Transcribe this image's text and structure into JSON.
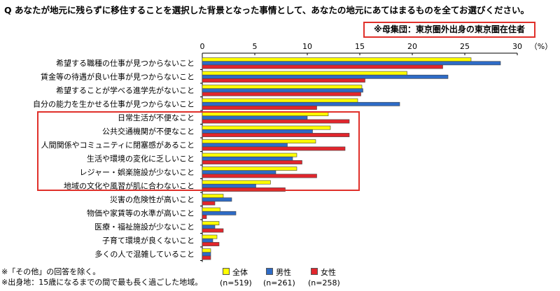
{
  "question": "Q  あなたが地元に残らずに移住することを選択した背景となった事情として、あなたの地元にあてはまるものを全てお選びください。",
  "group_label": "※母集団：東京圏外出身の東京圏在住者",
  "notes": [
    "※「その他」の回答を除く。",
    "※出身地：15歳になるまでの間で最も長く過ごした地域。"
  ],
  "colors": {
    "all": "#ffff00",
    "male": "#2e6bc6",
    "female": "#e1262d",
    "highlight": "#e0302a"
  },
  "chart_data": {
    "type": "bar",
    "orientation": "horizontal",
    "unit_label": "（%）",
    "xlim": [
      0,
      30
    ],
    "x_ticks": [
      0,
      5,
      10,
      15,
      20,
      25,
      30
    ],
    "grid": false,
    "legend_position": "bottom",
    "categories": [
      "希望する職種の仕事が見つからないこと",
      "賃金等の待遇が良い仕事が見つからないこと",
      "希望することが学べる進学先がないこと",
      "自分の能力を生かせる仕事が見つからないこと",
      "日常生活が不便なこと",
      "公共交通機関が不便なこと",
      "人間関係やコミュニティに閉塞感があること",
      "生活や環境の変化に乏しいこと",
      "レジャー・娯楽施設が少ないこと",
      "地域の文化や風習が肌に合わないこと",
      "災害の危険性が高いこと",
      "物価や家賃等の水準が高いこと",
      "医療・福祉施設が少ないこと",
      "子育て環境が良くないこと",
      "多くの人で混雑していること"
    ],
    "series": [
      {
        "name": "全体",
        "n_label": "(n=519)",
        "color_key": "all",
        "values": [
          25.6,
          19.5,
          15.2,
          14.8,
          12.0,
          12.2,
          10.8,
          9.0,
          9.0,
          6.5,
          2.0,
          1.7,
          1.6,
          1.4,
          0.8
        ]
      },
      {
        "name": "男性",
        "n_label": "(n=261)",
        "color_key": "male",
        "values": [
          28.4,
          23.4,
          15.3,
          18.8,
          10.0,
          10.5,
          8.1,
          8.6,
          7.0,
          5.1,
          2.8,
          3.2,
          1.2,
          1.0,
          0.8
        ]
      },
      {
        "name": "女性",
        "n_label": "(n=258)",
        "color_key": "female",
        "values": [
          22.9,
          15.5,
          15.1,
          10.9,
          14.0,
          14.0,
          13.6,
          9.5,
          10.9,
          7.9,
          1.2,
          0.4,
          2.0,
          1.6,
          0.8
        ]
      }
    ],
    "highlighted_categories": [
      4,
      5,
      6,
      7,
      8,
      9
    ]
  }
}
